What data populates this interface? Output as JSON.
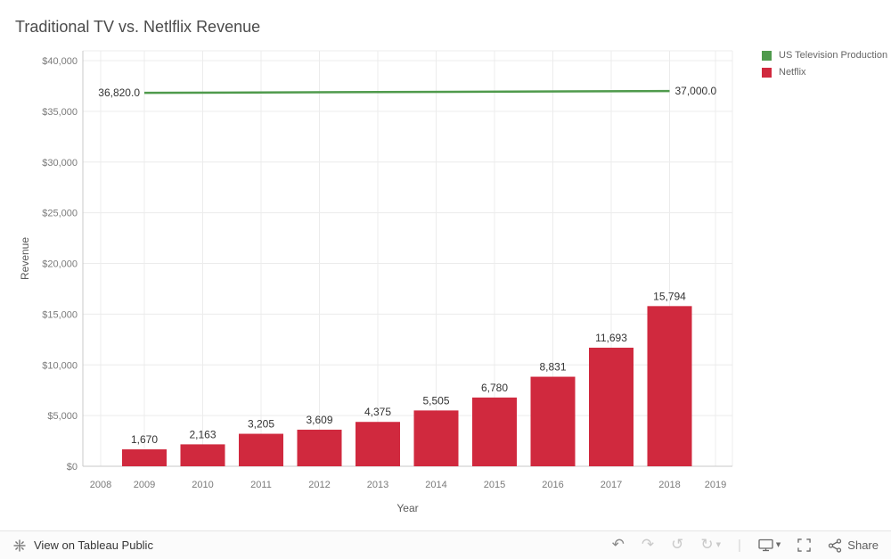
{
  "colors": {
    "netflix_red": "#d0293e",
    "tv_green": "#4f9a4c",
    "grid": "#ececec",
    "axis": "#c9c9c9",
    "tick_text": "#7a7a7a",
    "label_text": "#333333"
  },
  "chart_data": {
    "type": "bar",
    "title": "Traditional TV vs. Netlflix Revenue",
    "xlabel": "Year",
    "ylabel": "Revenue",
    "ylim": [
      0,
      40000
    ],
    "grid": true,
    "legend_position": "top-right",
    "x_ticks": [
      "2008",
      "2009",
      "2010",
      "2011",
      "2012",
      "2013",
      "2014",
      "2015",
      "2016",
      "2017",
      "2018",
      "2019"
    ],
    "y_ticks": [
      {
        "value": 0,
        "label": "$0"
      },
      {
        "value": 5000,
        "label": "$5,000"
      },
      {
        "value": 10000,
        "label": "$10,000"
      },
      {
        "value": 15000,
        "label": "$15,000"
      },
      {
        "value": 20000,
        "label": "$20,000"
      },
      {
        "value": 25000,
        "label": "$25,000"
      },
      {
        "value": 30000,
        "label": "$30,000"
      },
      {
        "value": 35000,
        "label": "$35,000"
      },
      {
        "value": 40000,
        "label": "$40,000"
      }
    ],
    "series": [
      {
        "name": "US Television Production",
        "type": "line",
        "color": "#4f9a4c",
        "points": [
          {
            "x": 2009,
            "value": 36820,
            "label": "36,820.0"
          },
          {
            "x": 2018,
            "value": 37000,
            "label": "37,000.0"
          }
        ]
      },
      {
        "name": "Netflix",
        "type": "bar",
        "color": "#d0293e",
        "categories": [
          2009,
          2010,
          2011,
          2012,
          2013,
          2014,
          2015,
          2016,
          2017,
          2018
        ],
        "values": [
          1670,
          2163,
          3205,
          3609,
          4375,
          5505,
          6780,
          8831,
          11693,
          15794
        ],
        "labels": [
          "1,670",
          "2,163",
          "3,205",
          "3,609",
          "4,375",
          "5,505",
          "6,780",
          "8,831",
          "11,693",
          "15,794"
        ]
      }
    ],
    "legend": [
      {
        "label": "US Television Production",
        "color": "#4f9a4c"
      },
      {
        "label": "Netflix",
        "color": "#d0293e"
      }
    ]
  },
  "footer": {
    "brand": {
      "logo_icon": "tableau-logo-asterisk",
      "link_label": "View on Tableau Public"
    },
    "icons": {
      "undo": "↶",
      "redo": "↷",
      "reset": "↺",
      "refresh": "↻",
      "caret": "▼",
      "separator": "|"
    },
    "share_label": "Share"
  }
}
